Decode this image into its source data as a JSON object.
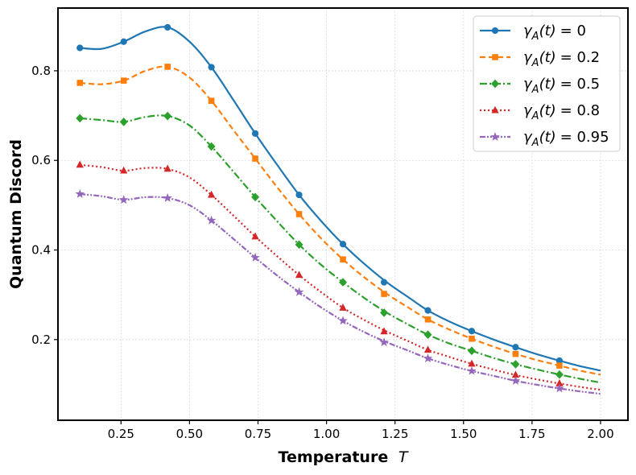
{
  "chart_data": {
    "type": "line",
    "title": "",
    "xlabel": "Temperature",
    "xlabel_var": "T",
    "ylabel": "Quantum Discord",
    "xlim": [
      0.02,
      2.1
    ],
    "ylim": [
      0.02,
      0.94
    ],
    "xticks": [
      0.25,
      0.5,
      0.75,
      1.0,
      1.25,
      1.5,
      1.75,
      2.0
    ],
    "xtick_labels": [
      "0.25",
      "0.50",
      "0.75",
      "1.00",
      "1.25",
      "1.50",
      "1.75",
      "2.00"
    ],
    "yticks": [
      0.2,
      0.4,
      0.6,
      0.8
    ],
    "ytick_labels": [
      "0.2",
      "0.4",
      "0.6",
      "0.8"
    ],
    "grid": true,
    "legend_position": "top-right",
    "x": [
      0.1,
      0.18,
      0.26,
      0.34,
      0.42,
      0.5,
      0.58,
      0.66,
      0.74,
      0.82,
      0.9,
      0.98,
      1.06,
      1.14,
      1.22,
      1.3,
      1.37,
      1.45,
      1.53,
      1.61,
      1.69,
      1.77,
      1.85,
      1.93,
      2.0
    ],
    "marker_x": [
      0.1,
      0.26,
      0.42,
      0.58,
      0.74,
      0.9,
      1.06,
      1.21,
      1.37,
      1.53,
      1.69,
      1.85
    ],
    "series": [
      {
        "name": "γ_A(t) = 0",
        "legend_sym": "γ",
        "legend_sub": "A",
        "legend_arg": "(t)",
        "legend_eq": "= 0",
        "color": "#1f77b4",
        "dash": "",
        "marker": "circle",
        "values": [
          0.851,
          0.849,
          0.865,
          0.888,
          0.897,
          0.865,
          0.808,
          0.735,
          0.66,
          0.59,
          0.523,
          0.465,
          0.413,
          0.368,
          0.328,
          0.294,
          0.265,
          0.24,
          0.219,
          0.2,
          0.183,
          0.167,
          0.153,
          0.14,
          0.131
        ],
        "marker_values": [
          0.851,
          0.865,
          0.897,
          0.808,
          0.66,
          0.523,
          0.413,
          0.328,
          0.265,
          0.219,
          0.183,
          0.153
        ]
      },
      {
        "name": "γ_A(t) = 0.2",
        "legend_sym": "γ",
        "legend_sub": "A",
        "legend_arg": "(t)",
        "legend_eq": "= 0.2",
        "color": "#ff7f0e",
        "dash": "7 4",
        "marker": "square",
        "values": [
          0.773,
          0.77,
          0.778,
          0.8,
          0.809,
          0.785,
          0.733,
          0.668,
          0.604,
          0.54,
          0.48,
          0.426,
          0.379,
          0.338,
          0.302,
          0.271,
          0.245,
          0.222,
          0.202,
          0.184,
          0.168,
          0.154,
          0.142,
          0.13,
          0.122
        ],
        "marker_values": [
          0.773,
          0.778,
          0.809,
          0.733,
          0.604,
          0.48,
          0.379,
          0.302,
          0.245,
          0.202,
          0.168,
          0.142
        ]
      },
      {
        "name": "γ_A(t) = 0.5",
        "legend_sym": "γ",
        "legend_sub": "A",
        "legend_arg": "(t)",
        "legend_eq": "= 0.5",
        "color": "#2ca02c",
        "dash": "9 3 2 3",
        "marker": "diamond",
        "values": [
          0.694,
          0.69,
          0.686,
          0.697,
          0.699,
          0.678,
          0.631,
          0.575,
          0.518,
          0.464,
          0.412,
          0.367,
          0.328,
          0.292,
          0.26,
          0.233,
          0.211,
          0.191,
          0.175,
          0.159,
          0.145,
          0.133,
          0.122,
          0.112,
          0.104
        ],
        "marker_values": [
          0.694,
          0.686,
          0.699,
          0.631,
          0.518,
          0.412,
          0.328,
          0.26,
          0.211,
          0.175,
          0.145,
          0.122
        ]
      },
      {
        "name": "γ_A(t) = 0.8",
        "legend_sym": "γ",
        "legend_sub": "A",
        "legend_arg": "(t)",
        "legend_eq": "= 0.8",
        "color": "#d62728",
        "dash": "2 3",
        "marker": "triangle",
        "values": [
          0.59,
          0.585,
          0.577,
          0.583,
          0.581,
          0.562,
          0.523,
          0.477,
          0.43,
          0.386,
          0.344,
          0.306,
          0.271,
          0.243,
          0.218,
          0.196,
          0.177,
          0.161,
          0.146,
          0.133,
          0.121,
          0.111,
          0.102,
          0.094,
          0.088
        ],
        "marker_values": [
          0.59,
          0.577,
          0.581,
          0.523,
          0.43,
          0.344,
          0.271,
          0.218,
          0.177,
          0.146,
          0.121,
          0.102
        ]
      },
      {
        "name": "γ_A(t) = 0.95",
        "legend_sym": "γ",
        "legend_sub": "A",
        "legend_arg": "(t)",
        "legend_eq": "= 0.95",
        "color": "#9467bd",
        "dash": "7 2 2 2 2 2",
        "marker": "star",
        "values": [
          0.525,
          0.52,
          0.512,
          0.518,
          0.516,
          0.5,
          0.466,
          0.425,
          0.383,
          0.343,
          0.306,
          0.272,
          0.242,
          0.216,
          0.194,
          0.175,
          0.158,
          0.143,
          0.13,
          0.119,
          0.108,
          0.099,
          0.091,
          0.084,
          0.079
        ],
        "marker_values": [
          0.525,
          0.512,
          0.516,
          0.466,
          0.383,
          0.306,
          0.242,
          0.194,
          0.158,
          0.13,
          0.108,
          0.091
        ]
      }
    ]
  }
}
